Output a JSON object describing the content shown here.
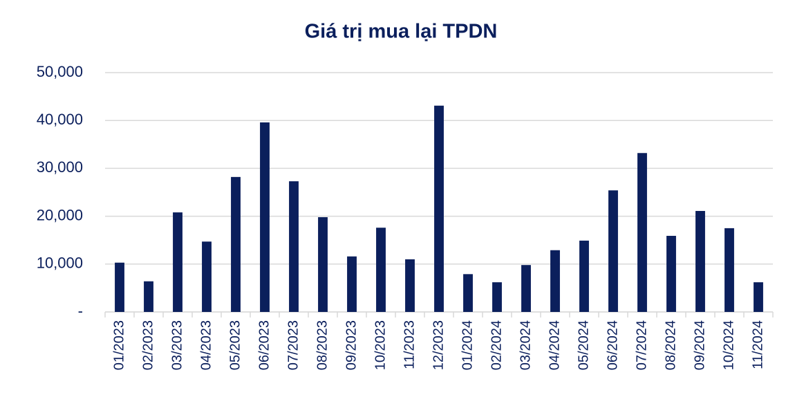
{
  "chart_data": {
    "type": "bar",
    "title": "Giá trị mua lại TPDN",
    "categories": [
      "01/2023",
      "02/2023",
      "03/2023",
      "04/2023",
      "05/2023",
      "06/2023",
      "07/2023",
      "08/2023",
      "09/2023",
      "10/2023",
      "11/2023",
      "12/2023",
      "01/2024",
      "02/2024",
      "03/2024",
      "04/2024",
      "05/2024",
      "06/2024",
      "07/2024",
      "08/2024",
      "09/2024",
      "10/2024",
      "11/2024"
    ],
    "values": [
      10300,
      6400,
      20800,
      14700,
      28200,
      39600,
      27300,
      19800,
      11600,
      17600,
      11000,
      43100,
      7900,
      6200,
      9800,
      12900,
      14900,
      25400,
      33200,
      15900,
      21100,
      17500,
      6200
    ],
    "color": "#0b1f5c",
    "ylim": [
      0,
      50000
    ],
    "yticks": [
      {
        "value": 0,
        "label": "-"
      },
      {
        "value": 10000,
        "label": "10,000"
      },
      {
        "value": 20000,
        "label": "20,000"
      },
      {
        "value": 30000,
        "label": "30,000"
      },
      {
        "value": 40000,
        "label": "40,000"
      },
      {
        "value": 50000,
        "label": "50,000"
      }
    ],
    "grid": true
  }
}
